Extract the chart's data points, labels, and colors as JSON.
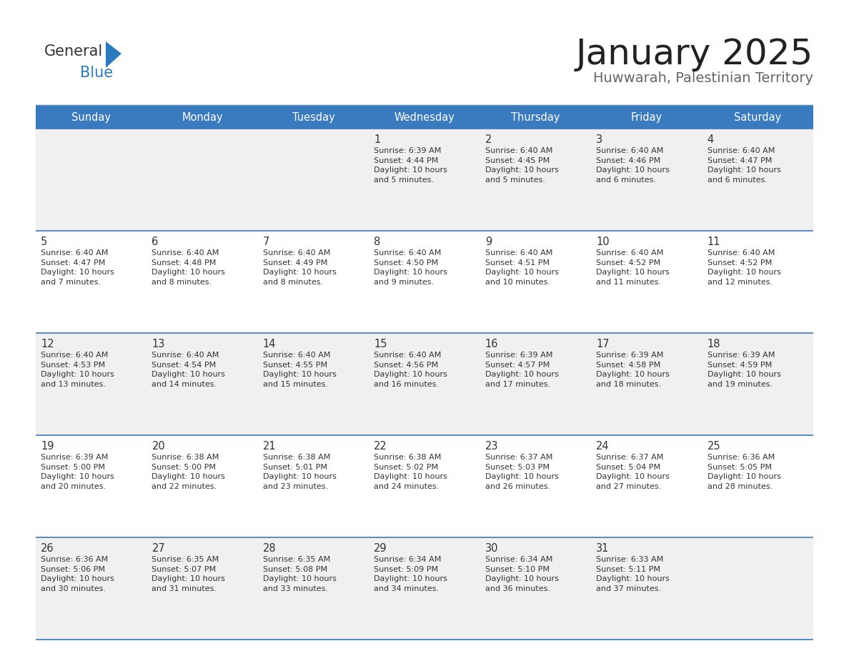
{
  "title": "January 2025",
  "subtitle": "Huwwarah, Palestinian Territory",
  "days_of_week": [
    "Sunday",
    "Monday",
    "Tuesday",
    "Wednesday",
    "Thursday",
    "Friday",
    "Saturday"
  ],
  "header_bg": "#3a7abf",
  "header_text": "#ffffff",
  "row_bg_odd": "#f0f0f0",
  "row_bg_even": "#ffffff",
  "cell_text": "#333333",
  "border_color": "#3a7abf",
  "title_color": "#222222",
  "subtitle_color": "#666666",
  "logo_general_color": "#333333",
  "logo_blue_color": "#2a7abf",
  "calendar_data": [
    [
      {
        "day": "",
        "info": ""
      },
      {
        "day": "",
        "info": ""
      },
      {
        "day": "",
        "info": ""
      },
      {
        "day": "1",
        "info": "Sunrise: 6:39 AM\nSunset: 4:44 PM\nDaylight: 10 hours\nand 5 minutes."
      },
      {
        "day": "2",
        "info": "Sunrise: 6:40 AM\nSunset: 4:45 PM\nDaylight: 10 hours\nand 5 minutes."
      },
      {
        "day": "3",
        "info": "Sunrise: 6:40 AM\nSunset: 4:46 PM\nDaylight: 10 hours\nand 6 minutes."
      },
      {
        "day": "4",
        "info": "Sunrise: 6:40 AM\nSunset: 4:47 PM\nDaylight: 10 hours\nand 6 minutes."
      }
    ],
    [
      {
        "day": "5",
        "info": "Sunrise: 6:40 AM\nSunset: 4:47 PM\nDaylight: 10 hours\nand 7 minutes."
      },
      {
        "day": "6",
        "info": "Sunrise: 6:40 AM\nSunset: 4:48 PM\nDaylight: 10 hours\nand 8 minutes."
      },
      {
        "day": "7",
        "info": "Sunrise: 6:40 AM\nSunset: 4:49 PM\nDaylight: 10 hours\nand 8 minutes."
      },
      {
        "day": "8",
        "info": "Sunrise: 6:40 AM\nSunset: 4:50 PM\nDaylight: 10 hours\nand 9 minutes."
      },
      {
        "day": "9",
        "info": "Sunrise: 6:40 AM\nSunset: 4:51 PM\nDaylight: 10 hours\nand 10 minutes."
      },
      {
        "day": "10",
        "info": "Sunrise: 6:40 AM\nSunset: 4:52 PM\nDaylight: 10 hours\nand 11 minutes."
      },
      {
        "day": "11",
        "info": "Sunrise: 6:40 AM\nSunset: 4:52 PM\nDaylight: 10 hours\nand 12 minutes."
      }
    ],
    [
      {
        "day": "12",
        "info": "Sunrise: 6:40 AM\nSunset: 4:53 PM\nDaylight: 10 hours\nand 13 minutes."
      },
      {
        "day": "13",
        "info": "Sunrise: 6:40 AM\nSunset: 4:54 PM\nDaylight: 10 hours\nand 14 minutes."
      },
      {
        "day": "14",
        "info": "Sunrise: 6:40 AM\nSunset: 4:55 PM\nDaylight: 10 hours\nand 15 minutes."
      },
      {
        "day": "15",
        "info": "Sunrise: 6:40 AM\nSunset: 4:56 PM\nDaylight: 10 hours\nand 16 minutes."
      },
      {
        "day": "16",
        "info": "Sunrise: 6:39 AM\nSunset: 4:57 PM\nDaylight: 10 hours\nand 17 minutes."
      },
      {
        "day": "17",
        "info": "Sunrise: 6:39 AM\nSunset: 4:58 PM\nDaylight: 10 hours\nand 18 minutes."
      },
      {
        "day": "18",
        "info": "Sunrise: 6:39 AM\nSunset: 4:59 PM\nDaylight: 10 hours\nand 19 minutes."
      }
    ],
    [
      {
        "day": "19",
        "info": "Sunrise: 6:39 AM\nSunset: 5:00 PM\nDaylight: 10 hours\nand 20 minutes."
      },
      {
        "day": "20",
        "info": "Sunrise: 6:38 AM\nSunset: 5:00 PM\nDaylight: 10 hours\nand 22 minutes."
      },
      {
        "day": "21",
        "info": "Sunrise: 6:38 AM\nSunset: 5:01 PM\nDaylight: 10 hours\nand 23 minutes."
      },
      {
        "day": "22",
        "info": "Sunrise: 6:38 AM\nSunset: 5:02 PM\nDaylight: 10 hours\nand 24 minutes."
      },
      {
        "day": "23",
        "info": "Sunrise: 6:37 AM\nSunset: 5:03 PM\nDaylight: 10 hours\nand 26 minutes."
      },
      {
        "day": "24",
        "info": "Sunrise: 6:37 AM\nSunset: 5:04 PM\nDaylight: 10 hours\nand 27 minutes."
      },
      {
        "day": "25",
        "info": "Sunrise: 6:36 AM\nSunset: 5:05 PM\nDaylight: 10 hours\nand 28 minutes."
      }
    ],
    [
      {
        "day": "26",
        "info": "Sunrise: 6:36 AM\nSunset: 5:06 PM\nDaylight: 10 hours\nand 30 minutes."
      },
      {
        "day": "27",
        "info": "Sunrise: 6:35 AM\nSunset: 5:07 PM\nDaylight: 10 hours\nand 31 minutes."
      },
      {
        "day": "28",
        "info": "Sunrise: 6:35 AM\nSunset: 5:08 PM\nDaylight: 10 hours\nand 33 minutes."
      },
      {
        "day": "29",
        "info": "Sunrise: 6:34 AM\nSunset: 5:09 PM\nDaylight: 10 hours\nand 34 minutes."
      },
      {
        "day": "30",
        "info": "Sunrise: 6:34 AM\nSunset: 5:10 PM\nDaylight: 10 hours\nand 36 minutes."
      },
      {
        "day": "31",
        "info": "Sunrise: 6:33 AM\nSunset: 5:11 PM\nDaylight: 10 hours\nand 37 minutes."
      },
      {
        "day": "",
        "info": ""
      }
    ]
  ]
}
